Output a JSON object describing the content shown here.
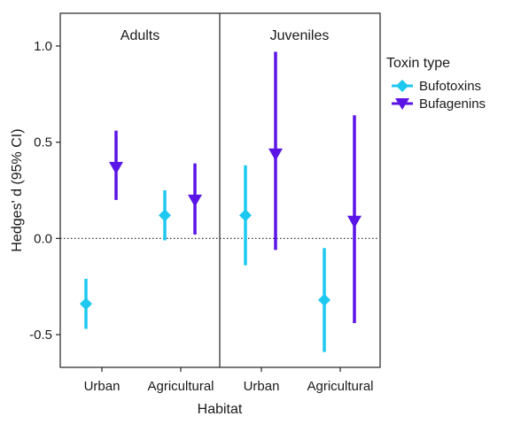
{
  "chart_data": {
    "type": "scatter",
    "subtype": "point-and-errorbar, faceted",
    "xlabel": "Habitat",
    "ylabel": "Hedges' d (95% CI)",
    "ylim": [
      -0.67,
      1.17
    ],
    "yticks": [
      -0.5,
      0.0,
      0.5,
      1.0
    ],
    "ytick_labels": [
      "-0.5",
      "0.0",
      "0.5",
      "1.0"
    ],
    "reference_line": {
      "y": 0.0,
      "style": "dotted"
    },
    "grid": false,
    "legend": {
      "title": "Toxin type",
      "placement": "right",
      "entries": [
        {
          "name": "Bufotoxins",
          "color": "#1ec8f0",
          "marker": "diamond"
        },
        {
          "name": "Bufagenins",
          "color": "#5a14e6",
          "marker": "triangle-down"
        }
      ]
    },
    "categories": [
      "Urban",
      "Agricultural"
    ],
    "panels": [
      {
        "label": "Adults",
        "series": [
          {
            "name": "Bufotoxins",
            "estimates": [
              -0.34,
              0.12
            ],
            "ci_lower": [
              -0.47,
              -0.01
            ],
            "ci_upper": [
              -0.21,
              0.25
            ]
          },
          {
            "name": "Bufagenins",
            "estimates": [
              0.37,
              0.2
            ],
            "ci_lower": [
              0.2,
              0.02
            ],
            "ci_upper": [
              0.56,
              0.39
            ]
          }
        ]
      },
      {
        "label": "Juveniles",
        "series": [
          {
            "name": "Bufotoxins",
            "estimates": [
              0.12,
              -0.32
            ],
            "ci_lower": [
              -0.14,
              -0.59
            ],
            "ci_upper": [
              0.38,
              -0.05
            ]
          },
          {
            "name": "Bufagenins",
            "estimates": [
              0.44,
              0.09
            ],
            "ci_lower": [
              -0.06,
              -0.44
            ],
            "ci_upper": [
              0.97,
              0.64
            ]
          }
        ]
      }
    ]
  }
}
